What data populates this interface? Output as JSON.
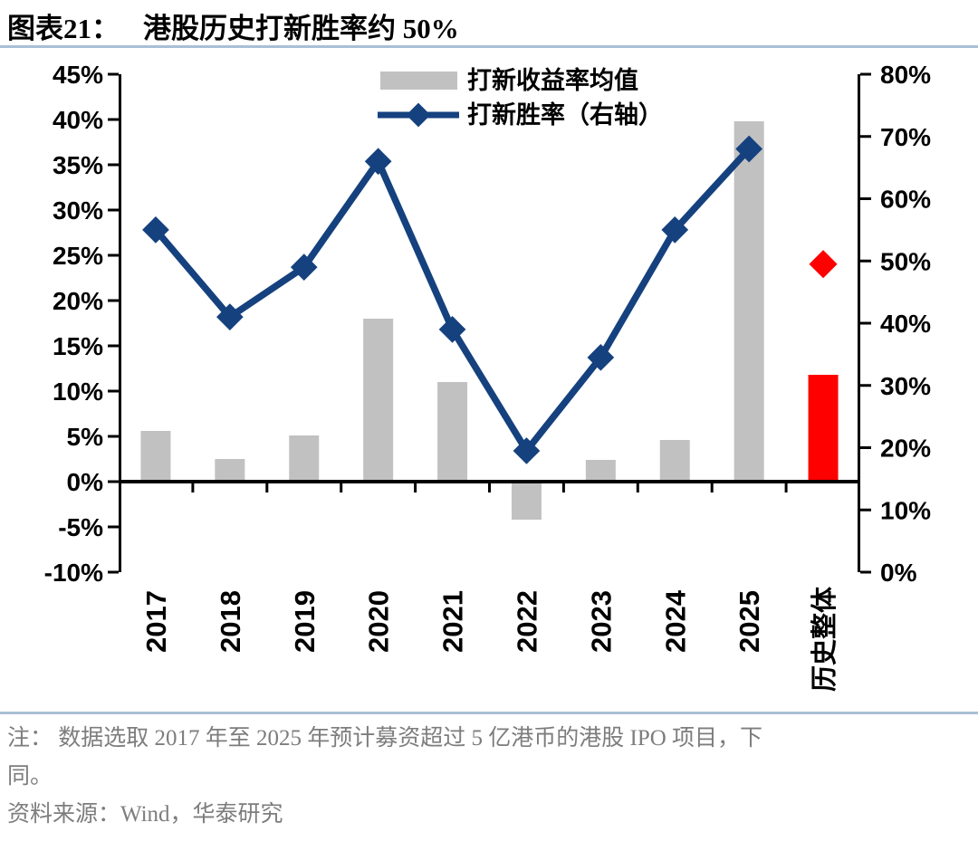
{
  "header": {
    "figure_label": "图表21：",
    "title": "港股历史打新胜率约 50%"
  },
  "chart_data": {
    "type": "combo",
    "subtype": "bar+line dual axis",
    "categories": [
      "2017",
      "2018",
      "2019",
      "2020",
      "2021",
      "2022",
      "2023",
      "2024",
      "2025",
      "历史整体"
    ],
    "series": [
      {
        "name": "打新收益率均值",
        "type": "bar",
        "axis": "left",
        "unit": "%",
        "values": [
          5.6,
          2.5,
          5.1,
          18.0,
          11.0,
          -4.2,
          2.4,
          4.6,
          39.8,
          11.8
        ]
      },
      {
        "name": "打新胜率（右轴）",
        "type": "line",
        "axis": "right",
        "unit": "%",
        "marker": "diamond",
        "values": [
          55,
          41,
          49,
          66,
          39,
          19.5,
          34.5,
          55,
          68,
          49.5
        ],
        "detached_categories": [
          "历史整体"
        ]
      }
    ],
    "left_axis": {
      "min": -10,
      "max": 45,
      "tick_labels": [
        "45%",
        "40%",
        "35%",
        "30%",
        "25%",
        "20%",
        "15%",
        "10%",
        "5%",
        "0%",
        "-5%",
        "-10%"
      ],
      "tick_values": [
        45,
        40,
        35,
        30,
        25,
        20,
        15,
        10,
        5,
        0,
        -5,
        -10
      ]
    },
    "right_axis": {
      "min": 0,
      "max": 80,
      "tick_labels": [
        "80%",
        "70%",
        "60%",
        "50%",
        "40%",
        "30%",
        "20%",
        "10%",
        "0%"
      ],
      "tick_values": [
        80,
        70,
        60,
        50,
        40,
        30,
        20,
        10,
        0
      ]
    },
    "highlight_category": "历史整体",
    "colors": {
      "bar": "#c1c1c1",
      "line": "#15417e",
      "highlight": "#ff0000",
      "axis": "#000000"
    },
    "legend_position": "top-center",
    "grid": false
  },
  "legend": {
    "items": [
      {
        "swatch": "gray-bar",
        "label": "打新收益率均值"
      },
      {
        "swatch": "blue-line-diamond",
        "label": "打新胜率（右轴）"
      }
    ]
  },
  "footer": {
    "note_line1": "注： 数据选取 2017 年至 2025 年预计募资超过 5 亿港币的港股 IPO 项目，下",
    "note_line2": "同。",
    "source_line": "资料来源：Wind，华泰研究"
  }
}
